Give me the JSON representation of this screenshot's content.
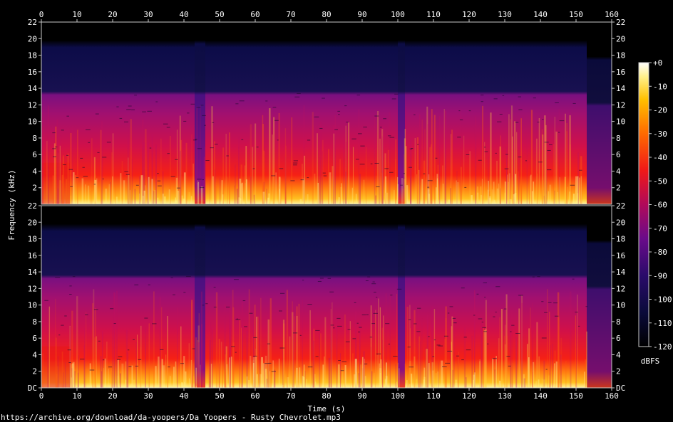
{
  "chart_data": {
    "type": "heatmap",
    "title": "",
    "xlabel": "Time (s)",
    "ylabel": "Frequency (kHz)",
    "xlim": [
      0,
      160
    ],
    "x_ticks": [
      "0",
      "10",
      "20",
      "30",
      "40",
      "50",
      "60",
      "70",
      "80",
      "90",
      "100",
      "110",
      "120",
      "130",
      "140",
      "150",
      "160"
    ],
    "channels": [
      {
        "name": "upper channel",
        "y_ticks": [
          "22",
          "20",
          "18",
          "16",
          "14",
          "12",
          "10",
          "8",
          "6",
          "4",
          "2"
        ],
        "y_ticks_right": [
          "22",
          "20",
          "18",
          "16",
          "14",
          "12",
          "10",
          "8",
          "6",
          "4",
          "2"
        ]
      },
      {
        "name": "lower channel",
        "y_ticks": [
          "22",
          "20",
          "18",
          "16",
          "14",
          "12",
          "10",
          "8",
          "6",
          "4",
          "2",
          "DC"
        ],
        "y_ticks_right": [
          "22",
          "20",
          "18",
          "16",
          "14",
          "12",
          "10",
          "8",
          "6",
          "4",
          "2",
          "DC"
        ]
      }
    ],
    "ylim_khz": [
      0,
      22
    ],
    "colorbar": {
      "label": "dBFS",
      "range": [
        -120,
        0
      ],
      "ticks": [
        "+0",
        "-10",
        "-20",
        "-30",
        "-40",
        "-50",
        "-60",
        "-70",
        "-80",
        "-90",
        "-100",
        "-110",
        "-120"
      ]
    },
    "content_summary": {
      "highpass_cutoff_khz": 13.5,
      "loud_band_khz": [
        0,
        4
      ],
      "quiet_segments_s": [
        [
          43,
          46
        ],
        [
          100,
          102
        ]
      ],
      "song_end_s": 153
    }
  },
  "footer": {
    "source_text": "https://archive.org/download/da-yoopers/Da Yoopers - Rusty Chevrolet.mp3"
  }
}
